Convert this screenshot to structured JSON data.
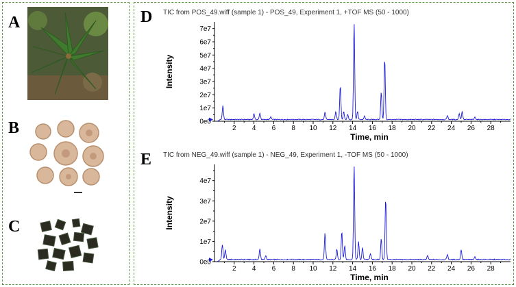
{
  "panel_letters": {
    "a": "A",
    "b": "B",
    "c": "C",
    "d": "D",
    "e": "E"
  },
  "colors": {
    "border": "#5a9a4a",
    "trace": "#1a1ad6",
    "axis": "#000000",
    "leaf": "#3f7a2e",
    "root": "#d9b79a",
    "slice": "#2b2b22"
  },
  "chart_data": [
    {
      "type": "line",
      "title": "TIC from POS_49.wiff (sample 1) - POS_49, Experiment 1, +TOF MS (50 - 1000)",
      "xlabel": "Time, min",
      "ylabel": "Intensity",
      "xlim": [
        0,
        30
      ],
      "ylim": [
        0,
        75000000
      ],
      "x_ticks": [
        2,
        4,
        6,
        8,
        10,
        12,
        14,
        16,
        18,
        20,
        22,
        24,
        26,
        28
      ],
      "y_ticks": [
        {
          "value": 0,
          "label": "0e0"
        },
        {
          "value": 10000000,
          "label": "1e7"
        },
        {
          "value": 20000000,
          "label": "2e7"
        },
        {
          "value": 30000000,
          "label": "3e7"
        },
        {
          "value": 40000000,
          "label": "4e7"
        },
        {
          "value": 50000000,
          "label": "5e7"
        },
        {
          "value": 60000000,
          "label": "6e7"
        },
        {
          "value": 70000000,
          "label": "7e7"
        }
      ],
      "baseline": 1000000,
      "peaks": [
        [
          0.85,
          10500000
        ],
        [
          4.0,
          4500000
        ],
        [
          4.6,
          5000000
        ],
        [
          5.7,
          2000000
        ],
        [
          11.2,
          5500000
        ],
        [
          12.3,
          6000000
        ],
        [
          12.75,
          26000000
        ],
        [
          13.1,
          6000000
        ],
        [
          13.5,
          4000000
        ],
        [
          14.15,
          73000000
        ],
        [
          14.5,
          6000000
        ],
        [
          15.2,
          2500000
        ],
        [
          16.9,
          21000000
        ],
        [
          17.25,
          46500000
        ],
        [
          23.6,
          3000000
        ],
        [
          24.8,
          4500000
        ],
        [
          25.1,
          6000000
        ],
        [
          26.4,
          2000000
        ]
      ]
    },
    {
      "type": "line",
      "title": "TIC from NEG_49.wiff (sample 1) - NEG_49, Experiment 1, -TOF MS (50 - 1000)",
      "xlabel": "Time, min",
      "ylabel": "Intensity",
      "xlim": [
        0,
        30
      ],
      "ylim": [
        0,
        48000000
      ],
      "x_ticks": [
        2,
        4,
        6,
        8,
        10,
        12,
        14,
        16,
        18,
        20,
        22,
        24,
        26,
        28
      ],
      "y_ticks": [
        {
          "value": 0,
          "label": "0e0"
        },
        {
          "value": 10000000,
          "label": "1e7"
        },
        {
          "value": 20000000,
          "label": "2e7"
        },
        {
          "value": 30000000,
          "label": "3e7"
        },
        {
          "value": 40000000,
          "label": "4e7"
        }
      ],
      "baseline": 800000,
      "peaks": [
        [
          0.8,
          7500000
        ],
        [
          1.1,
          5000000
        ],
        [
          4.6,
          5500000
        ],
        [
          5.2,
          2000000
        ],
        [
          11.2,
          13000000
        ],
        [
          12.4,
          5000000
        ],
        [
          12.9,
          14000000
        ],
        [
          13.2,
          7000000
        ],
        [
          14.15,
          46500000
        ],
        [
          14.6,
          9000000
        ],
        [
          15.0,
          6000000
        ],
        [
          15.8,
          3000000
        ],
        [
          16.9,
          10500000
        ],
        [
          17.35,
          30500000
        ],
        [
          21.6,
          2000000
        ],
        [
          23.6,
          2500000
        ],
        [
          25.0,
          5000000
        ],
        [
          26.4,
          1500000
        ]
      ]
    }
  ]
}
